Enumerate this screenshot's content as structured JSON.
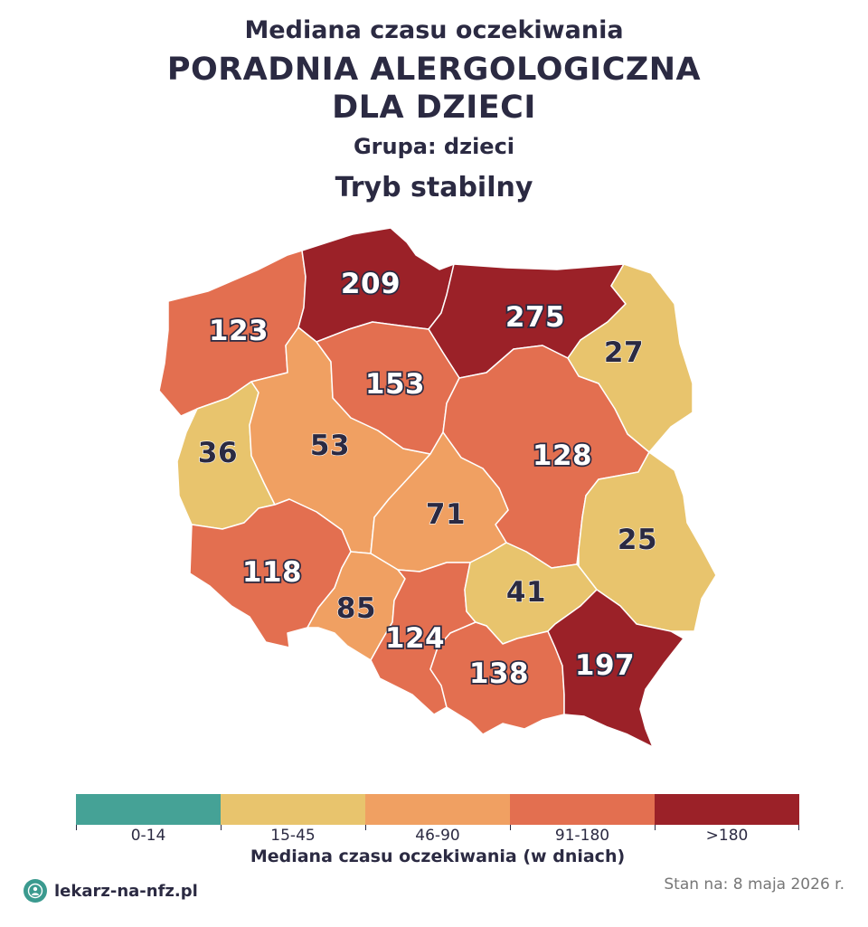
{
  "header": {
    "subtitle": "Mediana czasu oczekiwania",
    "title_line1": "PORADNIA ALERGOLOGICZNA",
    "title_line2": "DLA DZIECI",
    "group": "Grupa: dzieci",
    "mode": "Tryb stabilny"
  },
  "regions": [
    {
      "id": "zachodniopomorskie",
      "value": "123",
      "color": "#e36f50"
    },
    {
      "id": "pomorskie",
      "value": "209",
      "color": "#9b2128"
    },
    {
      "id": "warminsko-mazurskie",
      "value": "275",
      "color": "#9b2128"
    },
    {
      "id": "podlaskie",
      "value": "27",
      "color": "#e8c46d"
    },
    {
      "id": "lubuskie",
      "value": "36",
      "color": "#e8c46d"
    },
    {
      "id": "wielkopolskie",
      "value": "53",
      "color": "#f0a062"
    },
    {
      "id": "kujawsko-pomorskie",
      "value": "153",
      "color": "#e36f50"
    },
    {
      "id": "mazowieckie",
      "value": "128",
      "color": "#e36f50"
    },
    {
      "id": "lodzkie",
      "value": "71",
      "color": "#f0a062"
    },
    {
      "id": "lubelskie",
      "value": "25",
      "color": "#e8c46d"
    },
    {
      "id": "dolnoslaskie",
      "value": "118",
      "color": "#e36f50"
    },
    {
      "id": "opolskie",
      "value": "85",
      "color": "#f0a062"
    },
    {
      "id": "slaskie",
      "value": "124",
      "color": "#e36f50"
    },
    {
      "id": "swietokrzyskie",
      "value": "41",
      "color": "#e8c46d"
    },
    {
      "id": "malopolskie",
      "value": "138",
      "color": "#e36f50"
    },
    {
      "id": "podkarpackie",
      "value": "197",
      "color": "#9b2128"
    }
  ],
  "legend": {
    "title": "Mediana czasu oczekiwania (w dniach)",
    "bins": [
      {
        "label": "0-14",
        "color": "#45a296"
      },
      {
        "label": "15-45",
        "color": "#e8c46d"
      },
      {
        "label": "46-90",
        "color": "#f0a062"
      },
      {
        "label": "91-180",
        "color": "#e36f50"
      },
      {
        "label": ">180",
        "color": "#9b2128"
      }
    ]
  },
  "footer": {
    "brand": "lekarz-na-nfz.pl",
    "date": "Stan na: 8 maja 2026 r."
  }
}
